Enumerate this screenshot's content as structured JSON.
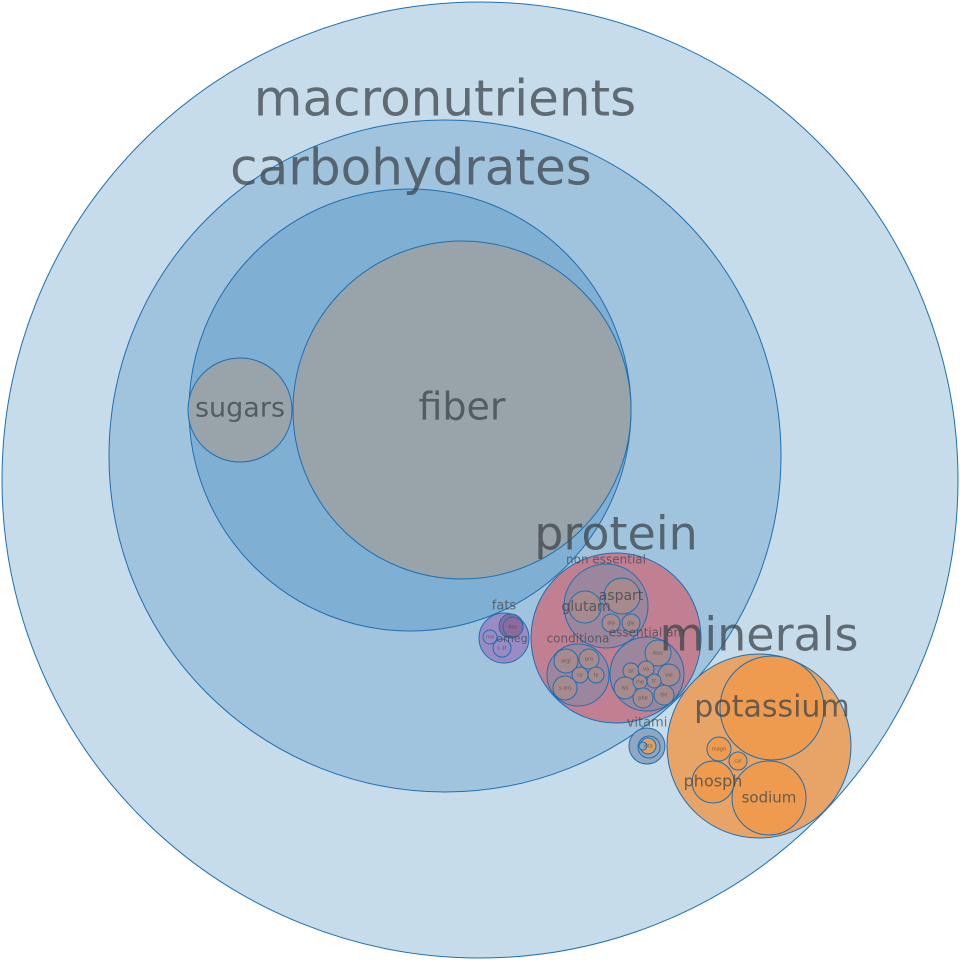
{
  "palette": {
    "outer": "#c6dcea",
    "carbs": "#a0c4de",
    "carbs_inner": "#7fb0d4",
    "fiber": "#98a4aa",
    "sugars": "#98a4aa",
    "protein": "#c17f92",
    "amino": "#9b869e",
    "amino_leaf": "#a78a8e",
    "fats": "#9a8bc5",
    "fats_leaf": "#8c6a9b",
    "minerals": "#e8a467",
    "minerals_leaf": "#ee9b4f",
    "vitamins": "#8fa7c0",
    "vitamins_leaf": "#dfa05e",
    "stroke": "#1f6fb0",
    "text": "#3d4449"
  },
  "chart_data": {
    "type": "packed-bubble",
    "labels": [
      {
        "text": "macronutrients"
      },
      {
        "text": "carbohydrates"
      },
      {
        "text": "fiber"
      },
      {
        "text": "sugars"
      },
      {
        "text": "protein"
      },
      {
        "text": "non essential"
      },
      {
        "text": "aspart"
      },
      {
        "text": "glutam"
      },
      {
        "text": "ala"
      },
      {
        "text": "gly"
      },
      {
        "text": "conditiona"
      },
      {
        "text": "argi"
      },
      {
        "text": "pro"
      },
      {
        "text": "cy"
      },
      {
        "text": "ty"
      },
      {
        "text": "s am"
      },
      {
        "text": "essential am"
      },
      {
        "text": "leuc"
      },
      {
        "text": "isl"
      },
      {
        "text": "va"
      },
      {
        "text": "val"
      },
      {
        "text": "lys"
      },
      {
        "text": "me"
      },
      {
        "text": "tr"
      },
      {
        "text": "phe"
      },
      {
        "text": "thr"
      },
      {
        "text": "fats"
      },
      {
        "text": "omeg"
      },
      {
        "text": "linc"
      },
      {
        "text": "mo"
      },
      {
        "text": "s at"
      },
      {
        "text": "minerals"
      },
      {
        "text": "potassium"
      },
      {
        "text": "magn"
      },
      {
        "text": "cal"
      },
      {
        "text": "phosph"
      },
      {
        "text": "sodium"
      },
      {
        "text": "vitami"
      },
      {
        "text": "vita"
      }
    ]
  }
}
